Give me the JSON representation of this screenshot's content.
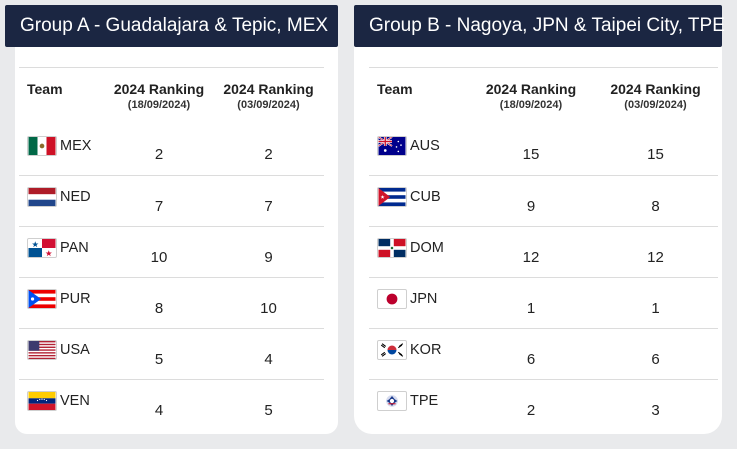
{
  "groupA": {
    "title": "Group A - Guadalajara & Tepic, MEX",
    "headers": {
      "team": "Team",
      "col1_title": "2024 Ranking",
      "col1_date": "(18/09/2024)",
      "col2_title": "2024 Ranking",
      "col2_date": "(03/09/2024)"
    },
    "rows": [
      {
        "code": "MEX",
        "flag": "mexico-flag-icon",
        "rank1": "2",
        "rank2": "2"
      },
      {
        "code": "NED",
        "flag": "netherlands-flag-icon",
        "rank1": "7",
        "rank2": "7"
      },
      {
        "code": "PAN",
        "flag": "panama-flag-icon",
        "rank1": "10",
        "rank2": "9"
      },
      {
        "code": "PUR",
        "flag": "puerto-rico-flag-icon",
        "rank1": "8",
        "rank2": "10"
      },
      {
        "code": "USA",
        "flag": "usa-flag-icon",
        "rank1": "5",
        "rank2": "4"
      },
      {
        "code": "VEN",
        "flag": "venezuela-flag-icon",
        "rank1": "4",
        "rank2": "5"
      }
    ]
  },
  "groupB": {
    "title": "Group B - Nagoya, JPN & Taipei City, TPE",
    "headers": {
      "team": "Team",
      "col1_title": "2024 Ranking",
      "col1_date": "(18/09/2024)",
      "col2_title": "2024 Ranking",
      "col2_date": "(03/09/2024)"
    },
    "rows": [
      {
        "code": "AUS",
        "flag": "australia-flag-icon",
        "rank1": "15",
        "rank2": "15"
      },
      {
        "code": "CUB",
        "flag": "cuba-flag-icon",
        "rank1": "9",
        "rank2": "8"
      },
      {
        "code": "DOM",
        "flag": "dominican-republic-flag-icon",
        "rank1": "12",
        "rank2": "12"
      },
      {
        "code": "JPN",
        "flag": "japan-flag-icon",
        "rank1": "1",
        "rank2": "1"
      },
      {
        "code": "KOR",
        "flag": "korea-flag-icon",
        "rank1": "6",
        "rank2": "6"
      },
      {
        "code": "TPE",
        "flag": "chinese-taipei-flag-icon",
        "rank1": "2",
        "rank2": "3"
      }
    ]
  },
  "colors": {
    "header_bg": "#1b2642",
    "page_bg": "#e9eaec",
    "card_bg": "#ffffff"
  }
}
